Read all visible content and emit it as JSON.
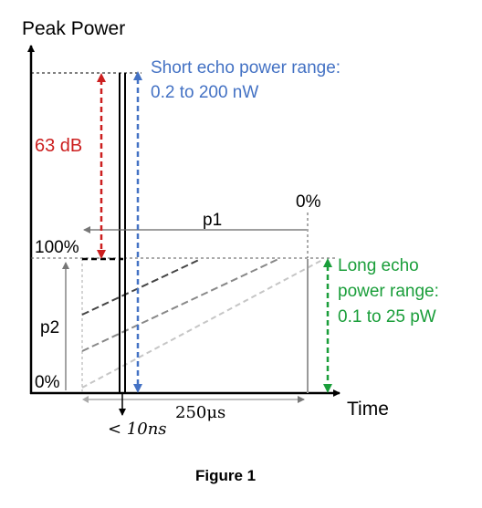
{
  "figure": {
    "caption": "Figure 1",
    "y_axis_label": "Peak Power",
    "x_axis_label": "Time",
    "labels": {
      "db_range": "63 dB",
      "short_echo_line1": "Short echo power range:",
      "short_echo_line2": "0.2 to 200 nW",
      "long_echo_line1": "Long echo",
      "long_echo_line2": "power range:",
      "long_echo_line3": "0.1 to 25 pW",
      "pct_100": "100%",
      "pct_0_left": "0%",
      "pct_0_right": "0%",
      "p1": "p1",
      "p2": "p2",
      "pulse_width": "< 10ns",
      "duration": "250μs"
    },
    "colors": {
      "red": "#cc1f1f",
      "blue": "#4472c4",
      "green": "#1a9e3a",
      "axis": "#000000"
    }
  }
}
